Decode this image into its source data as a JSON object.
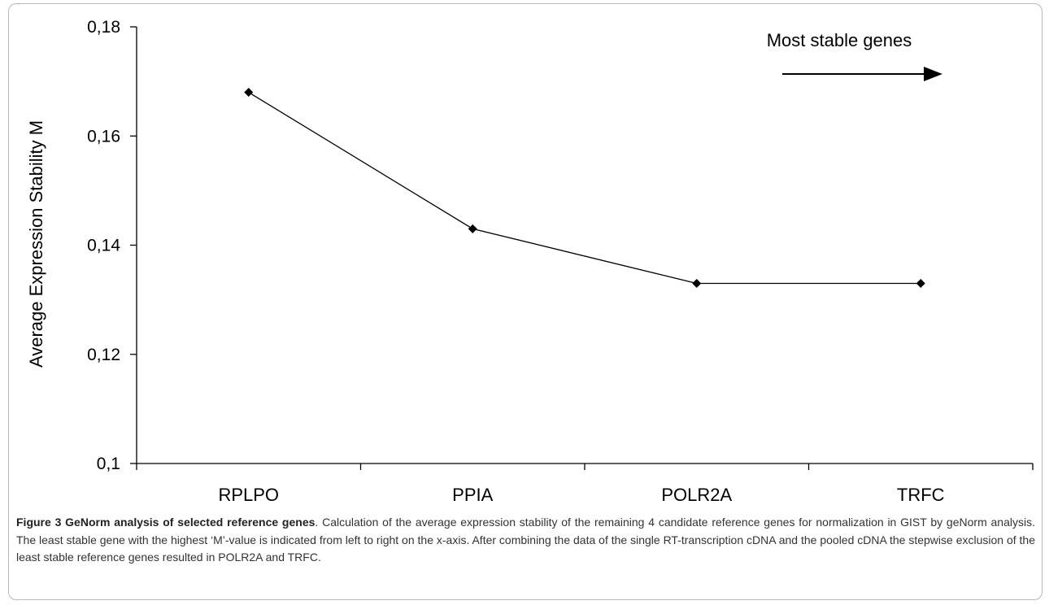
{
  "chart_data": {
    "type": "line",
    "categories": [
      "RPLPO",
      "PPIA",
      "POLR2A",
      "TRFC"
    ],
    "series": [
      {
        "values": [
          0.168,
          0.143,
          0.133,
          0.133
        ]
      }
    ],
    "ylabel": "Average Expression Stability M",
    "xlabel": "",
    "ylim": [
      0.1,
      0.18
    ],
    "yticks": [
      0.1,
      0.12,
      0.14,
      0.16,
      0.18
    ],
    "ytick_labels": [
      "0,1",
      "0,12",
      "0,14",
      "0,16",
      "0,18"
    ],
    "grid": false,
    "annotation": "Most stable genes",
    "line_color": "#000000"
  },
  "caption": {
    "title": "Figure 3 GeNorm analysis of selected reference genes",
    "body": ". Calculation of the average expression stability of the remaining 4 candidate reference genes for normalization in GIST by geNorm analysis. The least stable gene with the highest ‘M’-value is indicated from left to right on the x-axis. After combining the data of the single RT-transcription cDNA and the pooled cDNA the stepwise exclusion of the least stable reference genes resulted in POLR2A and TRFC."
  }
}
